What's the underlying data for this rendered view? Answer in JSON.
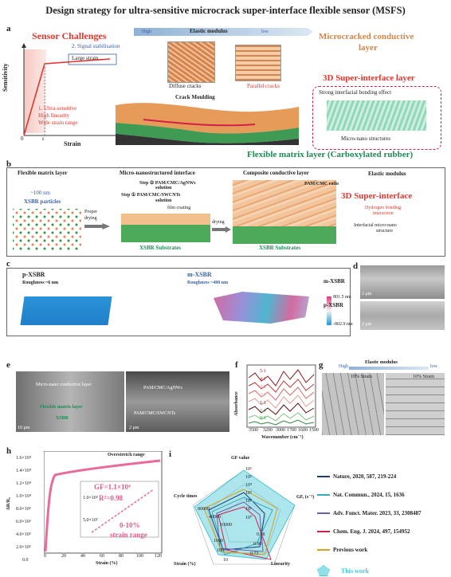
{
  "title": "Design strategy for ultra-sensitive microcrack super-interface flexible sensor (MSFS)",
  "panel_a": {
    "label": "a",
    "sensor_challenges": "Sensor Challenges",
    "y_axis": "Sensitivity",
    "x_axis": "Strain",
    "origin": "0",
    "x_tick": "ε",
    "signal_stab": "2. Signal stabilisation",
    "large_strain": "Large strain",
    "ultra1": "1. Ultra-sensitive",
    "ultra2": "High linearity",
    "ultra3": "Wide strain range",
    "elastic_modulus": "Elastic modulus",
    "high": "High",
    "low": "low",
    "diffuse": "Diffuse cracks",
    "parallel": "Parallel cracks",
    "crack_moulding": "Crack Moulding",
    "microcracked1": "Microcracked conductive",
    "microcracked2": "layer",
    "super3d": "3D Super-interface layer",
    "strong_bond": "Strong interfacial bonding effect",
    "micro_nano": "Micro-nano structures",
    "flex_matrix": "Flexible matrix layer (Carboxylated rubber)"
  },
  "panel_b": {
    "label": "b",
    "flex_matrix": "Flexible matrix layer",
    "size": "~100 nm",
    "particles": "XSBR particles",
    "proper": "Proper",
    "drying": "drying",
    "micro_title": "Micro-nanostructured interface",
    "step2": "Step ② PAM/CMC/AgNWs",
    "step2b": "solution",
    "step1": "Step ① PAM/CMC/SWCNTs",
    "step1b": "solution",
    "film": "film coating",
    "substrates": "XSBR Substrates",
    "drying2": "drying",
    "composite": "Composite conductive layer",
    "elastic": "Elastic modulus",
    "pam_ratio": "PAM/CMC ratio",
    "super3d": "3D Super-interface",
    "hbond1": "Hydrogen bonding",
    "hbond2": "interaction",
    "interfacial1": "Interfacial micro-nano",
    "interfacial2": "structure",
    "substrates2": "XSBR Substrates"
  },
  "panel_c": {
    "label": "c",
    "p_title": "p-XSBR",
    "p_rough": "Roughness ~6 nm",
    "m_title": "m-XSBR",
    "m_rough": "Roughness ~400 nm",
    "cbar_top": "801.5 nm",
    "cbar_bot": "-802.9 nm"
  },
  "panel_d": {
    "label": "d",
    "m": "m-XSBR",
    "p": "p-XSBR",
    "scale1": "2 μm",
    "scale2": "2 μm"
  },
  "panel_e": {
    "label": "e",
    "cond_layer": "Micro-nano conductive layer",
    "flex_layer": "Flexible matrix layer",
    "xsbr": "XSBR",
    "agnws": "PAM/CMC/AgNWs",
    "swcnts": "PAM/CMC/SWCNTs",
    "scale1": "10 μm",
    "scale2": "2 μm"
  },
  "panel_f": {
    "label": "f",
    "y": "Absorbance",
    "x": "Wavenumber (cm⁻¹)",
    "xticks": [
      "3500",
      "3200",
      "3000",
      "1700",
      "1600",
      "1500"
    ],
    "ratios": [
      "5:1",
      "4:1",
      "3:1",
      "2:1",
      "1:1",
      "1:4",
      "0:1"
    ]
  },
  "panel_g": {
    "label": "g",
    "elastic": "Elastic modulus",
    "high": "High",
    "low": "low",
    "strain1": "10% Strain",
    "strain2": "10% Strain"
  },
  "panel_h": {
    "label": "h",
    "y": "ΔR/R₀",
    "x": "Strain (%)",
    "overstretch": "Overstretch range",
    "gf": "GF=1.1×10⁴",
    "r2": "R²=0.98",
    "range1": "0-10%",
    "range2": "strain range",
    "yticks": [
      "0.0",
      "2.0×10³",
      "4.0×10³",
      "6.0×10³",
      "8.0×10³",
      "1.0×10⁴",
      "1.2×10⁴",
      "1.4×10⁴",
      "1.6×10⁴"
    ],
    "xticks": [
      "0",
      "20",
      "40",
      "60",
      "80",
      "100",
      "120"
    ],
    "inset_yticks": [
      "1.0×10³",
      "5.0×10²"
    ]
  },
  "panel_i": {
    "label": "i",
    "axes": [
      "GF value",
      "GF, (s⁻¹)",
      "Linearity",
      "Strain (%)",
      "Cycle times"
    ],
    "legend": [
      {
        "text": "Nature, 2020, 587, 219-224",
        "color": "#1f3c7a"
      },
      {
        "text": "Nat. Commun., 2024, 15, 1636",
        "color": "#3aa6b8"
      },
      {
        "text": "Adv. Funct. Mater. 2023, 33, 2308487",
        "color": "#6a5ea8"
      },
      {
        "text": "Chem. Eng. J. 2024, 497, 154952",
        "color": "#d2204a"
      },
      {
        "text": "Previous work",
        "color": "#d9a21a"
      },
      {
        "text": "This work",
        "color": "#48c6d4"
      }
    ],
    "radar_labels": [
      "10⁶",
      "10⁵",
      "10⁴",
      "10³",
      "10²",
      "10¹",
      "10⁰",
      "0.98",
      "0.90",
      "0.73",
      "80000",
      "40000",
      "10000",
      "1000",
      "100",
      "10"
    ]
  },
  "colors": {
    "red": "#e4362d",
    "blue": "#3a5fa8",
    "green": "#1e8a55",
    "cyan": "#48c6d4",
    "pink": "#e05a8a"
  }
}
